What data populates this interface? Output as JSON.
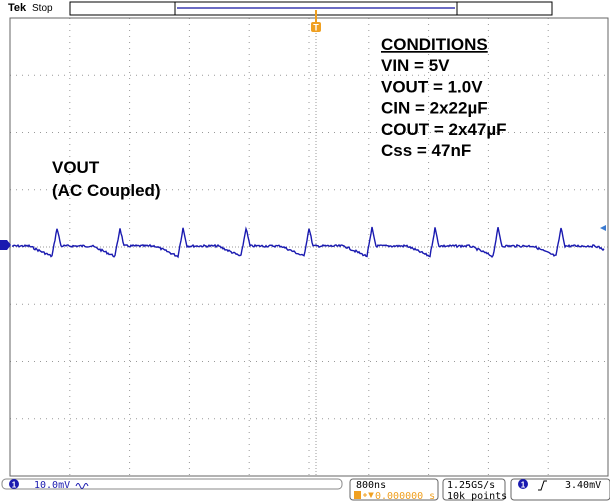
{
  "header": {
    "brand": "Tek",
    "status": "Stop"
  },
  "trigger_marker": "T",
  "annotations": {
    "conditions_title": "CONDITIONS",
    "conditions": [
      "VIN = 5V",
      "VOUT = 1.0V",
      "CIN = 2x22µF",
      "COUT = 2x47µF",
      "Css = 47nF"
    ],
    "trace_label": "VOUT",
    "trace_note": "(AC Coupled)"
  },
  "status_bar": {
    "channel": "1",
    "scale": "10.0mV",
    "timebase": "800ns",
    "delay": "0.000000 s",
    "sample_rate": "1.25GS/s",
    "record": "10k points",
    "trigger_channel": "1",
    "trigger_level": "3.40mV"
  }
}
